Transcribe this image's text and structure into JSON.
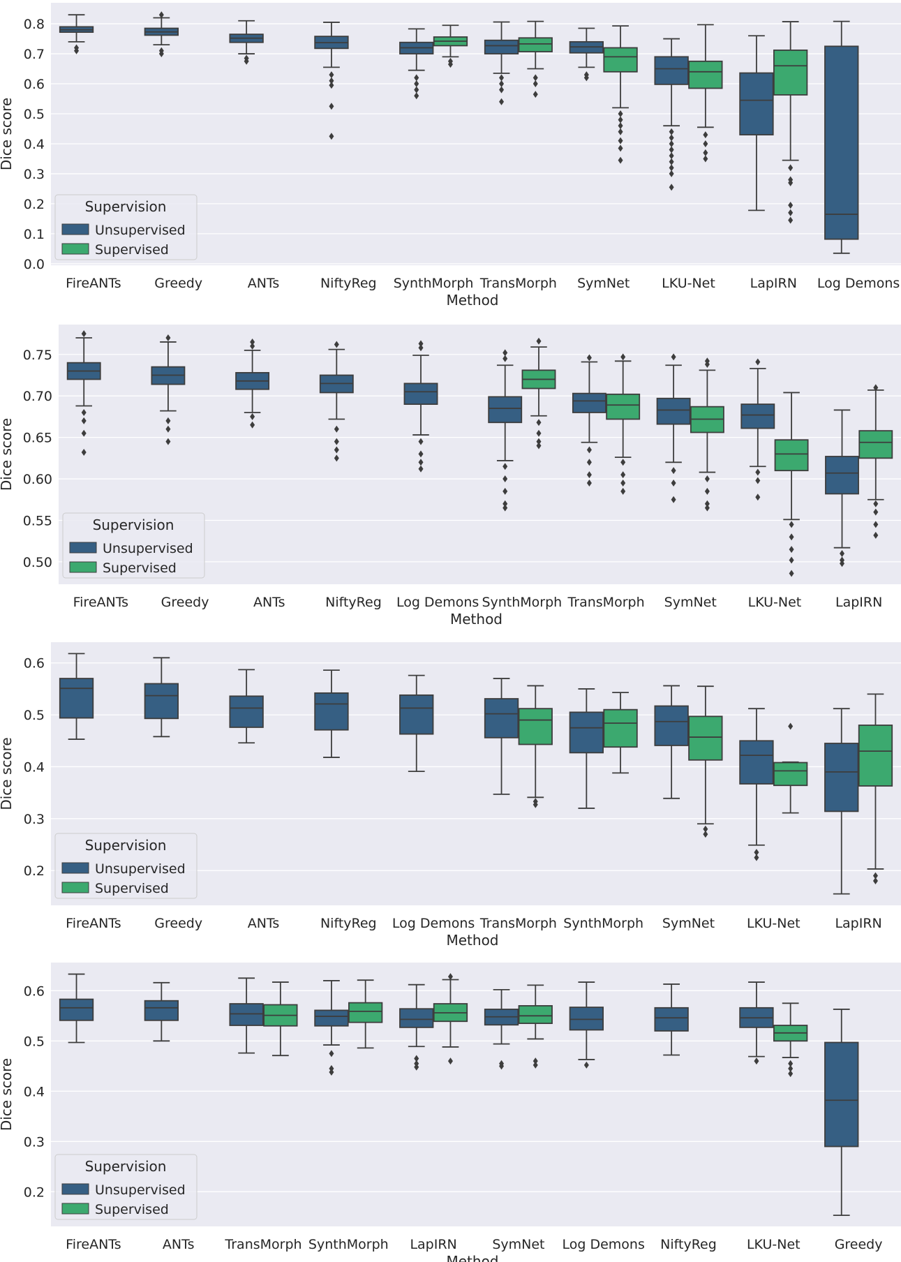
{
  "colors": {
    "unsupervised": "#365f83",
    "supervised": "#3ca96f",
    "background": "#eaeaf2",
    "grid": "#ffffff",
    "line": "#3d3d3d"
  },
  "chart_data": [
    {
      "type": "box",
      "xlabel": "Method",
      "ylabel": "Dice score",
      "ylim": [
        -0.005,
        0.87
      ],
      "yticks": [
        "0.0",
        "0.1",
        "0.2",
        "0.3",
        "0.4",
        "0.5",
        "0.6",
        "0.7",
        "0.8"
      ],
      "grid": true,
      "legend": {
        "title": "Supervision",
        "entries": [
          "Unsupervised",
          "Supervised"
        ],
        "placement": "lower-left"
      },
      "categories": [
        "FireANTs",
        "Greedy",
        "ANTs",
        "NiftyReg",
        "SynthMorph",
        "TransMorph",
        "SymNet",
        "LKU-Net",
        "LapIRN",
        "Log Demons"
      ],
      "boxes": [
        {
          "u": {
            "stats": [
              0.74,
              0.772,
              0.78,
              0.79,
              0.83
            ],
            "outliers": [
              0.72,
              0.71
            ]
          }
        },
        {
          "u": {
            "stats": [
              0.73,
              0.762,
              0.773,
              0.785,
              0.82
            ],
            "outliers": [
              0.83,
              0.71,
              0.7
            ]
          }
        },
        {
          "u": {
            "stats": [
              0.7,
              0.738,
              0.752,
              0.765,
              0.81
            ],
            "outliers": [
              0.685,
              0.675
            ]
          }
        },
        {
          "u": {
            "stats": [
              0.655,
              0.718,
              0.737,
              0.758,
              0.805
            ],
            "outliers": [
              0.63,
              0.61,
              0.595,
              0.525,
              0.425
            ]
          }
        },
        {
          "u": {
            "stats": [
              0.645,
              0.7,
              0.72,
              0.738,
              0.783
            ],
            "outliers": [
              0.62,
              0.6,
              0.58,
              0.56
            ]
          },
          "s": {
            "stats": [
              0.69,
              0.727,
              0.742,
              0.756,
              0.795
            ],
            "outliers": [
              0.675,
              0.665
            ]
          }
        },
        {
          "u": {
            "stats": [
              0.635,
              0.7,
              0.727,
              0.745,
              0.806
            ],
            "outliers": [
              0.62,
              0.6,
              0.58,
              0.54
            ]
          },
          "s": {
            "stats": [
              0.65,
              0.707,
              0.733,
              0.753,
              0.808
            ],
            "outliers": [
              0.62,
              0.6,
              0.565
            ]
          }
        },
        {
          "u": {
            "stats": [
              0.655,
              0.703,
              0.723,
              0.74,
              0.785
            ],
            "outliers": [
              0.63,
              0.62
            ]
          },
          "s": {
            "stats": [
              0.52,
              0.64,
              0.69,
              0.72,
              0.793
            ],
            "outliers": [
              0.5,
              0.48,
              0.46,
              0.44,
              0.41,
              0.385,
              0.345
            ]
          }
        },
        {
          "u": {
            "stats": [
              0.46,
              0.598,
              0.65,
              0.69,
              0.75
            ],
            "outliers": [
              0.44,
              0.42,
              0.4,
              0.38,
              0.36,
              0.34,
              0.32,
              0.3,
              0.255
            ]
          },
          "s": {
            "stats": [
              0.455,
              0.585,
              0.64,
              0.675,
              0.797
            ],
            "outliers": [
              0.43,
              0.4,
              0.37,
              0.35
            ]
          }
        },
        {
          "u": {
            "stats": [
              0.178,
              0.43,
              0.545,
              0.636,
              0.76
            ],
            "outliers": []
          },
          "s": {
            "stats": [
              0.345,
              0.563,
              0.66,
              0.712,
              0.807
            ],
            "outliers": [
              0.32,
              0.28,
              0.27,
              0.195,
              0.17,
              0.145
            ]
          }
        },
        {
          "u": {
            "stats": [
              0.035,
              0.082,
              0.165,
              0.725,
              0.808
            ],
            "outliers": []
          }
        }
      ]
    },
    {
      "type": "box",
      "xlabel": "Method",
      "ylabel": "Dice score",
      "ylim": [
        0.473,
        0.786
      ],
      "yticks": [
        "0.50",
        "0.55",
        "0.60",
        "0.65",
        "0.70",
        "0.75"
      ],
      "grid": true,
      "legend": {
        "title": "Supervision",
        "entries": [
          "Unsupervised",
          "Supervised"
        ],
        "placement": "lower-left"
      },
      "categories": [
        "FireANTs",
        "Greedy",
        "ANTs",
        "NiftyReg",
        "Log Demons",
        "SynthMorph",
        "TransMorph",
        "SymNet",
        "LKU-Net",
        "LapIRN"
      ],
      "boxes": [
        {
          "u": {
            "stats": [
              0.688,
              0.72,
              0.73,
              0.74,
              0.77
            ],
            "outliers": [
              0.68,
              0.67,
              0.655,
              0.632,
              0.775
            ]
          }
        },
        {
          "u": {
            "stats": [
              0.682,
              0.714,
              0.725,
              0.735,
              0.765
            ],
            "outliers": [
              0.67,
              0.66,
              0.645,
              0.77
            ]
          }
        },
        {
          "u": {
            "stats": [
              0.68,
              0.708,
              0.718,
              0.728,
              0.755
            ],
            "outliers": [
              0.675,
              0.665,
              0.76,
              0.765
            ]
          }
        },
        {
          "u": {
            "stats": [
              0.672,
              0.704,
              0.715,
              0.725,
              0.756
            ],
            "outliers": [
              0.66,
              0.645,
              0.635,
              0.625,
              0.762
            ]
          }
        },
        {
          "u": {
            "stats": [
              0.653,
              0.69,
              0.705,
              0.715,
              0.749
            ],
            "outliers": [
              0.645,
              0.63,
              0.62,
              0.612,
              0.758,
              0.763
            ]
          }
        },
        {
          "u": {
            "stats": [
              0.622,
              0.668,
              0.685,
              0.699,
              0.737
            ],
            "outliers": [
              0.615,
              0.6,
              0.585,
              0.57,
              0.565,
              0.745,
              0.752
            ]
          },
          "s": {
            "stats": [
              0.676,
              0.709,
              0.72,
              0.731,
              0.759
            ],
            "outliers": [
              0.668,
              0.655,
              0.645,
              0.64,
              0.766
            ]
          }
        },
        {
          "u": {
            "stats": [
              0.644,
              0.68,
              0.694,
              0.703,
              0.741
            ],
            "outliers": [
              0.635,
              0.62,
              0.605,
              0.595,
              0.746
            ]
          },
          "s": {
            "stats": [
              0.626,
              0.672,
              0.689,
              0.702,
              0.742
            ],
            "outliers": [
              0.62,
              0.605,
              0.595,
              0.585,
              0.747
            ]
          }
        },
        {
          "u": {
            "stats": [
              0.62,
              0.666,
              0.683,
              0.697,
              0.737
            ],
            "outliers": [
              0.61,
              0.595,
              0.575,
              0.747
            ]
          },
          "s": {
            "stats": [
              0.608,
              0.656,
              0.672,
              0.687,
              0.731
            ],
            "outliers": [
              0.6,
              0.585,
              0.57,
              0.565,
              0.738,
              0.742
            ]
          }
        },
        {
          "u": {
            "stats": [
              0.615,
              0.661,
              0.677,
              0.69,
              0.733
            ],
            "outliers": [
              0.608,
              0.598,
              0.578,
              0.741
            ]
          },
          "s": {
            "stats": [
              0.551,
              0.61,
              0.63,
              0.647,
              0.704
            ],
            "outliers": [
              0.545,
              0.53,
              0.515,
              0.502,
              0.486
            ]
          }
        },
        {
          "u": {
            "stats": [
              0.517,
              0.582,
              0.607,
              0.627,
              0.683
            ],
            "outliers": [
              0.51,
              0.502,
              0.498
            ]
          },
          "s": {
            "stats": [
              0.575,
              0.625,
              0.644,
              0.658,
              0.707
            ],
            "outliers": [
              0.57,
              0.56,
              0.545,
              0.532,
              0.71
            ]
          }
        }
      ]
    },
    {
      "type": "box",
      "xlabel": "Method",
      "ylabel": "Dice score",
      "ylim": [
        0.133,
        0.64
      ],
      "yticks": [
        "0.2",
        "0.3",
        "0.4",
        "0.5",
        "0.6"
      ],
      "grid": true,
      "legend": {
        "title": "Supervision",
        "entries": [
          "Unsupervised",
          "Supervised"
        ],
        "placement": "lower-left"
      },
      "categories": [
        "FireANTs",
        "Greedy",
        "ANTs",
        "NiftyReg",
        "Log Demons",
        "TransMorph",
        "SynthMorph",
        "SymNet",
        "LKU-Net",
        "LapIRN"
      ],
      "boxes": [
        {
          "u": {
            "stats": [
              0.453,
              0.494,
              0.551,
              0.57,
              0.618
            ],
            "outliers": []
          }
        },
        {
          "u": {
            "stats": [
              0.458,
              0.493,
              0.537,
              0.56,
              0.61
            ],
            "outliers": []
          }
        },
        {
          "u": {
            "stats": [
              0.446,
              0.476,
              0.513,
              0.536,
              0.587
            ],
            "outliers": []
          }
        },
        {
          "u": {
            "stats": [
              0.418,
              0.471,
              0.521,
              0.542,
              0.586
            ],
            "outliers": []
          }
        },
        {
          "u": {
            "stats": [
              0.391,
              0.463,
              0.513,
              0.538,
              0.576
            ],
            "outliers": []
          }
        },
        {
          "u": {
            "stats": [
              0.347,
              0.456,
              0.502,
              0.531,
              0.57
            ],
            "outliers": []
          },
          "s": {
            "stats": [
              0.341,
              0.443,
              0.49,
              0.512,
              0.556
            ],
            "outliers": [
              0.333,
              0.327
            ]
          }
        },
        {
          "u": {
            "stats": [
              0.32,
              0.427,
              0.475,
              0.505,
              0.55
            ],
            "outliers": []
          },
          "s": {
            "stats": [
              0.388,
              0.438,
              0.484,
              0.51,
              0.543
            ],
            "outliers": []
          }
        },
        {
          "u": {
            "stats": [
              0.339,
              0.441,
              0.487,
              0.517,
              0.556
            ],
            "outliers": []
          },
          "s": {
            "stats": [
              0.29,
              0.413,
              0.457,
              0.497,
              0.555
            ],
            "outliers": [
              0.28,
              0.27
            ]
          }
        },
        {
          "u": {
            "stats": [
              0.249,
              0.367,
              0.422,
              0.45,
              0.512
            ],
            "outliers": [
              0.235,
              0.225
            ]
          },
          "s": {
            "stats": [
              0.311,
              0.364,
              0.392,
              0.408,
              0.409
            ],
            "outliers": [
              0.478
            ]
          }
        },
        {
          "u": {
            "stats": [
              0.155,
              0.314,
              0.39,
              0.445,
              0.512
            ],
            "outliers": []
          },
          "s": {
            "stats": [
              0.203,
              0.363,
              0.43,
              0.48,
              0.54
            ],
            "outliers": [
              0.19,
              0.18
            ]
          }
        }
      ]
    },
    {
      "type": "box",
      "xlabel": "Method",
      "ylabel": "Dice score",
      "ylim": [
        0.131,
        0.656
      ],
      "yticks": [
        "0.2",
        "0.3",
        "0.4",
        "0.5",
        "0.6"
      ],
      "grid": true,
      "legend": {
        "title": "Supervision",
        "entries": [
          "Unsupervised",
          "Supervised"
        ],
        "placement": "lower-left"
      },
      "categories": [
        "FireANTs",
        "ANTs",
        "TransMorph",
        "SynthMorph",
        "LapIRN",
        "SymNet",
        "Log Demons",
        "NiftyReg",
        "LKU-Net",
        "Greedy"
      ],
      "boxes": [
        {
          "u": {
            "stats": [
              0.497,
              0.541,
              0.566,
              0.583,
              0.633
            ],
            "outliers": []
          }
        },
        {
          "u": {
            "stats": [
              0.5,
              0.541,
              0.566,
              0.58,
              0.616
            ],
            "outliers": []
          }
        },
        {
          "u": {
            "stats": [
              0.476,
              0.531,
              0.554,
              0.574,
              0.625
            ],
            "outliers": []
          },
          "s": {
            "stats": [
              0.471,
              0.53,
              0.551,
              0.572,
              0.617
            ],
            "outliers": []
          }
        },
        {
          "u": {
            "stats": [
              0.492,
              0.53,
              0.549,
              0.561,
              0.62
            ],
            "outliers": [
              0.475,
              0.445,
              0.438
            ]
          },
          "s": {
            "stats": [
              0.486,
              0.537,
              0.559,
              0.576,
              0.621
            ],
            "outliers": []
          }
        },
        {
          "u": {
            "stats": [
              0.489,
              0.527,
              0.543,
              0.564,
              0.612
            ],
            "outliers": [
              0.465,
              0.455,
              0.448
            ]
          },
          "s": {
            "stats": [
              0.488,
              0.539,
              0.556,
              0.574,
              0.622
            ],
            "outliers": [
              0.46,
              0.628
            ]
          }
        },
        {
          "u": {
            "stats": [
              0.494,
              0.532,
              0.548,
              0.563,
              0.602
            ],
            "outliers": [
              0.455,
              0.45
            ]
          },
          "s": {
            "stats": [
              0.504,
              0.535,
              0.55,
              0.57,
              0.611
            ],
            "outliers": [
              0.46,
              0.452
            ]
          }
        },
        {
          "u": {
            "stats": [
              0.463,
              0.522,
              0.543,
              0.567,
              0.617
            ],
            "outliers": [
              0.452
            ]
          }
        },
        {
          "u": {
            "stats": [
              0.472,
              0.52,
              0.546,
              0.566,
              0.613
            ],
            "outliers": []
          }
        },
        {
          "u": {
            "stats": [
              0.469,
              0.527,
              0.546,
              0.566,
              0.617
            ],
            "outliers": [
              0.46
            ]
          },
          "s": {
            "stats": [
              0.467,
              0.5,
              0.516,
              0.531,
              0.575
            ],
            "outliers": [
              0.455,
              0.445,
              0.435
            ]
          }
        },
        {
          "u": {
            "stats": [
              0.153,
              0.29,
              0.382,
              0.497,
              0.563
            ],
            "outliers": []
          }
        }
      ]
    }
  ]
}
